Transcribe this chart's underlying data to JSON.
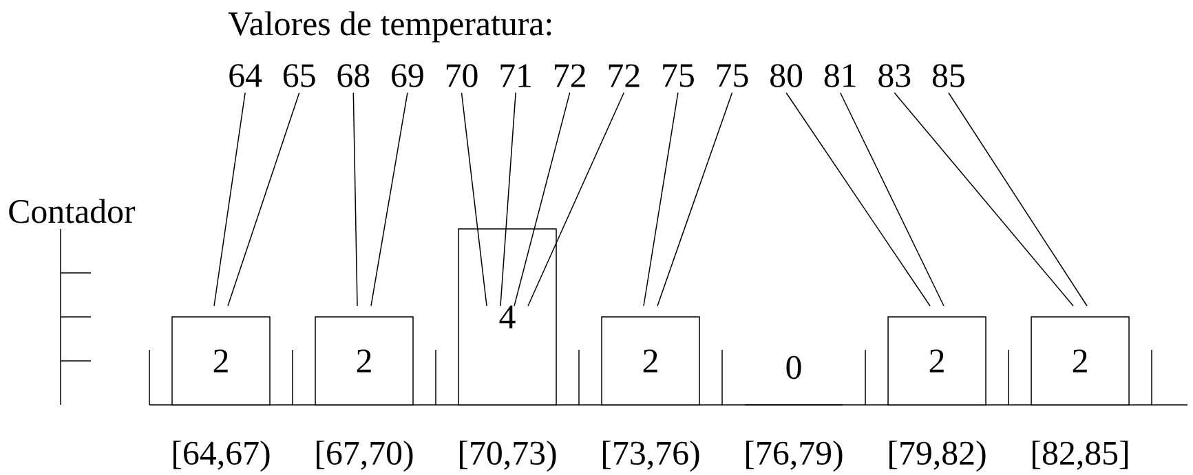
{
  "chart_data": {
    "type": "bar",
    "title": "Valores de temperatura:",
    "ylabel": "Contador",
    "categories": [
      "[64,67)",
      "[67,70)",
      "[70,73)",
      "[73,76)",
      "[76,79)",
      "[79,82)",
      "[82,85]"
    ],
    "values": [
      2,
      2,
      4,
      2,
      0,
      2,
      2
    ],
    "color": "#ffffff",
    "data_labels": true,
    "ylim": [
      0,
      4
    ],
    "tick_labels": "x",
    "annotations": [
      "64",
      "65",
      "68",
      "69",
      "70",
      "71",
      "72",
      "72",
      "75",
      "75",
      "80",
      "81",
      "83",
      "85"
    ]
  }
}
